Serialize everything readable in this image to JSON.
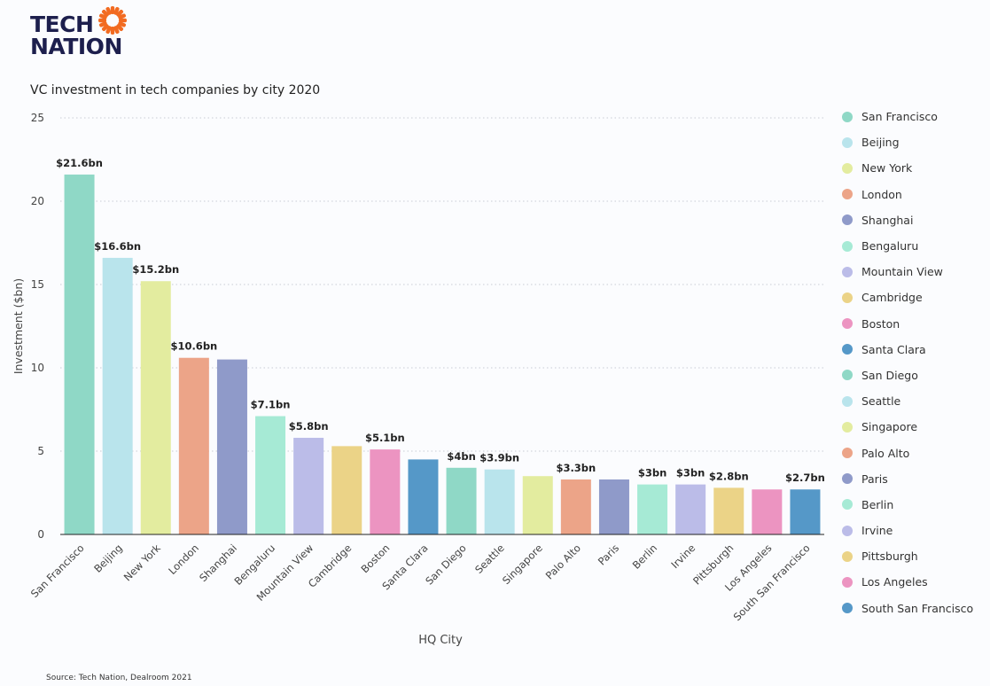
{
  "logo": {
    "line1": "TECH",
    "line2": "NATION",
    "sun_color": "#f26b21",
    "text_color": "#1d1f4d"
  },
  "source_text": "Source: Tech Nation, Dealroom 2021",
  "chart_data": {
    "type": "bar",
    "title": "VC investment in tech companies by city 2020",
    "xlabel": "HQ City",
    "ylabel": "Investment ($bn)",
    "ylim": [
      0,
      25
    ],
    "yticks": [
      0,
      5,
      10,
      15,
      20,
      25
    ],
    "grid": true,
    "legend_position": "right",
    "categories": [
      "San Francisco",
      "Beijing",
      "New York",
      "London",
      "Shanghai",
      "Bengaluru",
      "Mountain View",
      "Cambridge",
      "Boston",
      "Santa Clara",
      "San Diego",
      "Seattle",
      "Singapore",
      "Palo Alto",
      "Paris",
      "Berlin",
      "Irvine",
      "Pittsburgh",
      "Los Angeles",
      "South San Francisco"
    ],
    "values": [
      21.6,
      16.6,
      15.2,
      10.6,
      10.5,
      7.1,
      5.8,
      5.3,
      5.1,
      4.5,
      4.0,
      3.9,
      3.5,
      3.3,
      3.3,
      3.0,
      3.0,
      2.8,
      2.7,
      2.7
    ],
    "data_labels": [
      "$21.6bn",
      "$16.6bn",
      "$15.2bn",
      "$10.6bn",
      "",
      "$7.1bn",
      "$5.8bn",
      "",
      "$5.1bn",
      "",
      "$4bn",
      "$3.9bn",
      "",
      "$3.3bn",
      "",
      "$3bn",
      "$3bn",
      "$2.8bn",
      "",
      "$2.7bn"
    ],
    "colors": [
      "#8fd8c6",
      "#b9e4ec",
      "#e3ec9f",
      "#eca488",
      "#8f9ac9",
      "#a6ead5",
      "#bbbce8",
      "#ebd387",
      "#ec94c1",
      "#5598c8",
      "#8fd8c6",
      "#b9e4ec",
      "#e3ec9f",
      "#eca488",
      "#8f9ac9",
      "#a6ead5",
      "#bbbce8",
      "#ebd387",
      "#ec94c1",
      "#5598c8"
    ]
  }
}
